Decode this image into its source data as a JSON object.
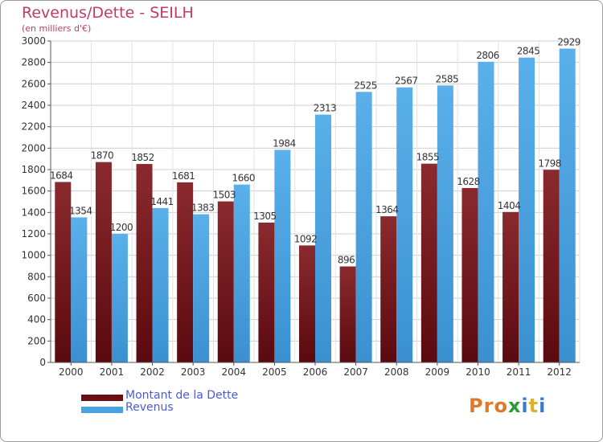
{
  "chart_data": {
    "type": "bar",
    "title": "Revenus/Dette - SEILH",
    "subtitle": "(en milliers d'€)",
    "categories": [
      "2000",
      "2001",
      "2002",
      "2003",
      "2004",
      "2005",
      "2006",
      "2007",
      "2008",
      "2009",
      "2010",
      "2011",
      "2012"
    ],
    "series": [
      {
        "name": "Montant de la Dette",
        "color": "#7a1a1f",
        "values": [
          1684,
          1870,
          1852,
          1681,
          1503,
          1305,
          1092,
          896,
          1364,
          1855,
          1628,
          1404,
          1798
        ],
        "labels": [
          "1684",
          "1870",
          "1852",
          "1681",
          "1503",
          "1305",
          "1092",
          "896",
          "1364",
          "1855",
          "1628",
          "1404",
          "1798"
        ]
      },
      {
        "name": "Revenus",
        "color": "#4aa3df",
        "values": [
          1354,
          1200,
          1441,
          1383,
          1660,
          1984,
          2313,
          2525,
          2567,
          2585,
          2806,
          2845,
          2929
        ],
        "labels": [
          "1354",
          "1200",
          "1441",
          "1383",
          "1660",
          "1984",
          "2313",
          "2525",
          "2567",
          "2585",
          "2806",
          "2845",
          "2929"
        ]
      }
    ],
    "ylim": [
      0,
      3000
    ],
    "yticks": [
      0,
      200,
      400,
      600,
      800,
      1000,
      1200,
      1400,
      1600,
      1800,
      2000,
      2200,
      2400,
      2600,
      2800,
      3000
    ],
    "grid": true,
    "legend_position": "bottom-left"
  },
  "branding": {
    "logo_text": "Proxiti",
    "logo_letters": [
      {
        "ch": "P",
        "color": "#e07a2a"
      },
      {
        "ch": "r",
        "color": "#e07a2a"
      },
      {
        "ch": "o",
        "color": "#e07a2a"
      },
      {
        "ch": "x",
        "color": "#2a9a3a"
      },
      {
        "ch": "i",
        "color": "#3a7ad6"
      },
      {
        "ch": "t",
        "color": "#e0b02a"
      },
      {
        "ch": "i",
        "color": "#3a7ad6"
      }
    ]
  }
}
